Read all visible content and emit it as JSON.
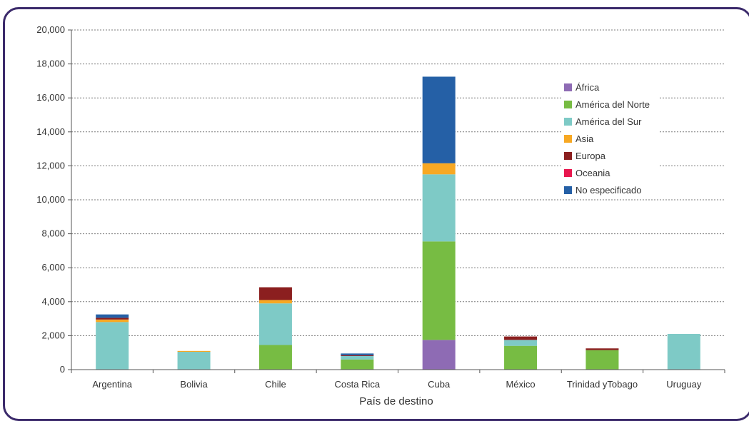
{
  "chart_data": {
    "type": "bar",
    "stacked": true,
    "xlabel": "País de destino",
    "ylabel": "",
    "ylim": [
      0,
      20000
    ],
    "yticks": [
      0,
      2000,
      4000,
      6000,
      8000,
      10000,
      12000,
      14000,
      16000,
      18000,
      20000
    ],
    "ytick_labels": [
      "0",
      "2,000",
      "4,000",
      "6,000",
      "8,000",
      "10,000",
      "12,000",
      "14,000",
      "16,000",
      "18,000",
      "20,000"
    ],
    "grid": true,
    "legend_position": "top-right",
    "categories": [
      "Argentina",
      "Bolivia",
      "Chile",
      "Costa Rica",
      "Cuba",
      "México",
      "Trinidad yTobago",
      "Uruguay"
    ],
    "series": [
      {
        "name": "África",
        "color": "#8e6bb4",
        "values": [
          0,
          0,
          0,
          0,
          1750,
          0,
          0,
          0
        ]
      },
      {
        "name": "América del Norte",
        "color": "#77bc43",
        "values": [
          0,
          0,
          1450,
          600,
          5800,
          1400,
          1150,
          0
        ]
      },
      {
        "name": "América del Sur",
        "color": "#7ecac6",
        "values": [
          2800,
          1050,
          2450,
          200,
          3950,
          350,
          0,
          2100
        ]
      },
      {
        "name": "Asia",
        "color": "#f7a823",
        "values": [
          150,
          50,
          200,
          0,
          650,
          0,
          0,
          0
        ]
      },
      {
        "name": "Europa",
        "color": "#8b1f1f",
        "values": [
          100,
          0,
          750,
          50,
          0,
          200,
          100,
          0
        ]
      },
      {
        "name": "Oceania",
        "color": "#e8174e",
        "values": [
          0,
          0,
          0,
          0,
          0,
          0,
          0,
          0
        ]
      },
      {
        "name": "No especificado",
        "color": "#2560a6",
        "values": [
          200,
          0,
          0,
          100,
          5100,
          0,
          0,
          0
        ]
      }
    ]
  }
}
